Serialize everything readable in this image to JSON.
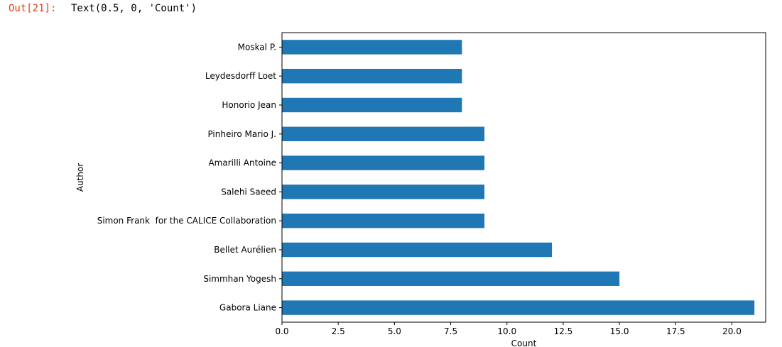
{
  "output_cell": {
    "prompt": "Out[21]:",
    "text": "Text(0.5, 0, 'Count')"
  },
  "chart_data": {
    "type": "bar",
    "orientation": "horizontal",
    "categories": [
      "Gabora Liane",
      "Simmhan Yogesh",
      "Bellet Aurélien",
      "Simon Frank  for the CALICE Collaboration",
      "Salehi Saeed",
      "Amarilli Antoine",
      "Pinheiro Mario J.",
      "Honorio Jean",
      "Leydesdorff Loet",
      "Moskal P."
    ],
    "values": [
      21,
      15,
      12,
      9,
      9,
      9,
      9,
      8,
      8,
      8
    ],
    "xlabel": "Count",
    "ylabel": "Author",
    "xlim": [
      0,
      21.5
    ],
    "xticks": [
      "0.0",
      "2.5",
      "5.0",
      "7.5",
      "10.0",
      "12.5",
      "15.0",
      "17.5",
      "20.0"
    ],
    "bar_color": "#1f77b4",
    "grid": false
  }
}
